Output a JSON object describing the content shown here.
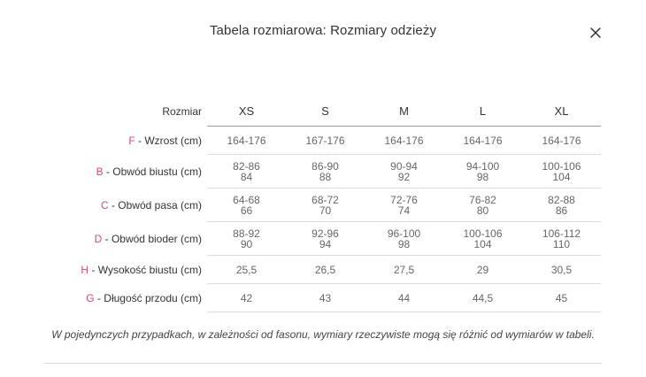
{
  "modal": {
    "title": "Tabela rozmiarowa: Rozmiary odzieży",
    "close_icon": "close-icon"
  },
  "table": {
    "header_label": "Rozmiar",
    "sizes": [
      "XS",
      "S",
      "M",
      "L",
      "XL"
    ],
    "rows": [
      {
        "letter": "F",
        "label": " - Wzrost (cm)",
        "values": [
          [
            "164-176"
          ],
          [
            "167-176"
          ],
          [
            "164-176"
          ],
          [
            "164-176"
          ],
          [
            "164-176"
          ]
        ]
      },
      {
        "letter": "B",
        "label": " - Obwód biustu (cm)",
        "values": [
          [
            "82-86",
            "84"
          ],
          [
            "86-90",
            "88"
          ],
          [
            "90-94",
            "92"
          ],
          [
            "94-100",
            "98"
          ],
          [
            "100-106",
            "104"
          ]
        ]
      },
      {
        "letter": "C",
        "label": " - Obwód pasa (cm)",
        "values": [
          [
            "64-68",
            "66"
          ],
          [
            "68-72",
            "70"
          ],
          [
            "72-76",
            "74"
          ],
          [
            "76-82",
            "80"
          ],
          [
            "82-88",
            "86"
          ]
        ]
      },
      {
        "letter": "D",
        "label": " - Obwód bioder (cm)",
        "values": [
          [
            "88-92",
            "90"
          ],
          [
            "92-96",
            "94"
          ],
          [
            "96-100",
            "98"
          ],
          [
            "100-106",
            "104"
          ],
          [
            "106-112",
            "110"
          ]
        ]
      },
      {
        "letter": "H",
        "label": " - Wysokość biustu (cm)",
        "values": [
          [
            "25,5"
          ],
          [
            "26,5"
          ],
          [
            "27,5"
          ],
          [
            "29"
          ],
          [
            "30,5"
          ]
        ]
      },
      {
        "letter": "G",
        "label": " - Długość przodu (cm)",
        "values": [
          [
            "42"
          ],
          [
            "43"
          ],
          [
            "44"
          ],
          [
            "44,5"
          ],
          [
            "45"
          ]
        ]
      }
    ]
  },
  "note": "W pojedynczych przypadkach, w zależności od fasonu, wymiary rzeczywiste mogą się różnić od wymiarów w tabeli.",
  "colors": {
    "accent_letter": "#c8506e",
    "text": "#333333",
    "value_text": "#666666"
  }
}
